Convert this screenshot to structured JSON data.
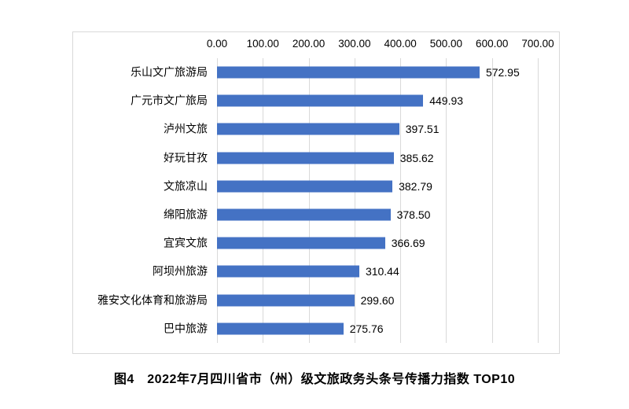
{
  "chart_data": {
    "type": "bar",
    "orientation": "horizontal",
    "title": "图4　2022年7月四川省市（州）级文旅政务头条号传播力指数 TOP10",
    "categories": [
      "乐山文广旅游局",
      "广元市文广旅局",
      "泸州文旅",
      "好玩甘孜",
      "文旅凉山",
      "绵阳旅游",
      "宜宾文旅",
      "阿坝州旅游",
      "雅安文化体育和旅游局",
      "巴中旅游"
    ],
    "values": [
      572.95,
      449.93,
      397.51,
      385.62,
      382.79,
      378.5,
      366.69,
      310.44,
      299.6,
      275.76
    ],
    "value_labels": [
      "572.95",
      "449.93",
      "397.51",
      "385.62",
      "382.79",
      "378.50",
      "366.69",
      "310.44",
      "299.60",
      "275.76"
    ],
    "x_ticks": [
      "0.00",
      "100.00",
      "200.00",
      "300.00",
      "400.00",
      "500.00",
      "600.00",
      "700.00"
    ],
    "x_tick_values": [
      0,
      100,
      200,
      300,
      400,
      500,
      600,
      700
    ],
    "xlim": [
      0,
      700
    ],
    "xlabel": "",
    "ylabel": "",
    "grid": true,
    "legend": false,
    "bar_color": "#4472C4",
    "gridline_color": "#D9D9D9",
    "frame_border_color": "#D9D9D9",
    "text_color": "#000000"
  }
}
